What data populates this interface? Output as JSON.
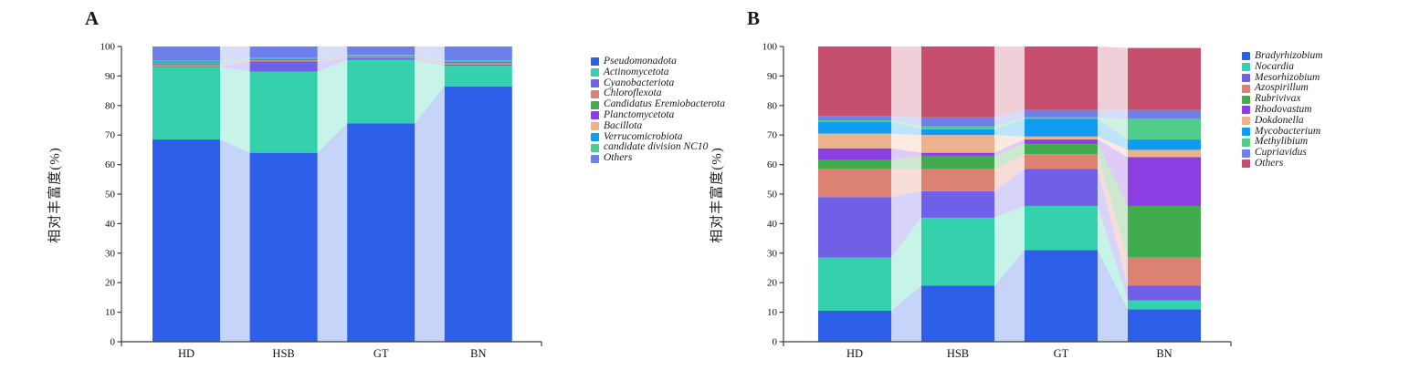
{
  "page": {
    "background": "#ffffff"
  },
  "chart_data": [
    {
      "type": "bar",
      "variant": "stacked-alluvial",
      "panel_label": "A",
      "title": "",
      "xlabel": "",
      "ylabel": "相对丰富度(%)",
      "categories": [
        "HD",
        "HSB",
        "GT",
        "BN"
      ],
      "ylim": [
        0,
        100
      ],
      "ytick_step": 10,
      "grid": false,
      "legend_position": "right",
      "flow_opacity": 0.27,
      "series": [
        {
          "name": "Pseudomonadota",
          "color": "#2E5FE8",
          "values": [
            68.5,
            64.0,
            74.0,
            86.5
          ]
        },
        {
          "name": "Actinomycetota",
          "color": "#35D1AE",
          "values": [
            24.5,
            27.5,
            21.5,
            7.0
          ]
        },
        {
          "name": "Cyanobacteriota",
          "color": "#7060E8",
          "values": [
            0.3,
            3.5,
            0.6,
            0.4
          ]
        },
        {
          "name": "Chloroflexota",
          "color": "#DC8272",
          "values": [
            0.4,
            0.3,
            0.2,
            0.5
          ]
        },
        {
          "name": "Candidatus Eremiobacterota",
          "color": "#41AC4D",
          "values": [
            0.4,
            0.2,
            0.2,
            0.2
          ]
        },
        {
          "name": "Planctomycetota",
          "color": "#8B3FE3",
          "values": [
            0.2,
            0.2,
            0.2,
            0.2
          ]
        },
        {
          "name": "Bacillota",
          "color": "#EBB28B",
          "values": [
            0.2,
            0.1,
            0.1,
            0.1
          ]
        },
        {
          "name": "Verrucomicrobiota",
          "color": "#0F9BF2",
          "values": [
            0.5,
            0.2,
            0.2,
            0.3
          ]
        },
        {
          "name": "candidate division NC10",
          "color": "#52CC8A",
          "values": [
            0.2,
            0.1,
            0.1,
            0.1
          ]
        },
        {
          "name": "Others",
          "color": "#6D7FEA",
          "values": [
            4.8,
            3.9,
            2.9,
            4.7
          ]
        }
      ]
    },
    {
      "type": "bar",
      "variant": "stacked-alluvial",
      "panel_label": "B",
      "title": "",
      "xlabel": "",
      "ylabel": "相对丰富度(%)",
      "categories": [
        "HD",
        "HSB",
        "GT",
        "BN"
      ],
      "ylim": [
        0,
        100
      ],
      "ytick_step": 10,
      "grid": false,
      "legend_position": "right",
      "flow_opacity": 0.27,
      "series": [
        {
          "name": "Bradyrhizobium",
          "color": "#2E5FE8",
          "values": [
            10.5,
            19.0,
            31.0,
            11.0
          ]
        },
        {
          "name": "Nocardia",
          "color": "#35D1AE",
          "values": [
            18.0,
            23.0,
            15.0,
            3.0
          ]
        },
        {
          "name": "Mesorhizobium",
          "color": "#7060E8",
          "values": [
            20.5,
            9.0,
            12.5,
            5.0
          ]
        },
        {
          "name": "Azospirillum",
          "color": "#DC8272",
          "values": [
            9.5,
            7.5,
            5.0,
            9.5
          ]
        },
        {
          "name": "Rubrivivax",
          "color": "#41AC4D",
          "values": [
            3.0,
            4.5,
            3.5,
            17.5
          ]
        },
        {
          "name": "Rhodovastum",
          "color": "#8B3FE3",
          "values": [
            4.0,
            1.0,
            1.5,
            16.5
          ]
        },
        {
          "name": "Dokdonella",
          "color": "#EBB28B",
          "values": [
            5.0,
            6.0,
            1.0,
            2.5
          ]
        },
        {
          "name": "Mycobacterium",
          "color": "#0F9BF2",
          "values": [
            4.0,
            2.0,
            6.0,
            3.5
          ]
        },
        {
          "name": "Methylibium",
          "color": "#52CC8A",
          "values": [
            0.5,
            1.0,
            0.5,
            7.0
          ]
        },
        {
          "name": "Cupriavidus",
          "color": "#6D7FEA",
          "values": [
            1.5,
            3.0,
            2.5,
            3.0
          ]
        },
        {
          "name": "Others",
          "color": "#C64F6E",
          "values": [
            23.5,
            24.0,
            21.5,
            21.0
          ]
        }
      ]
    }
  ]
}
